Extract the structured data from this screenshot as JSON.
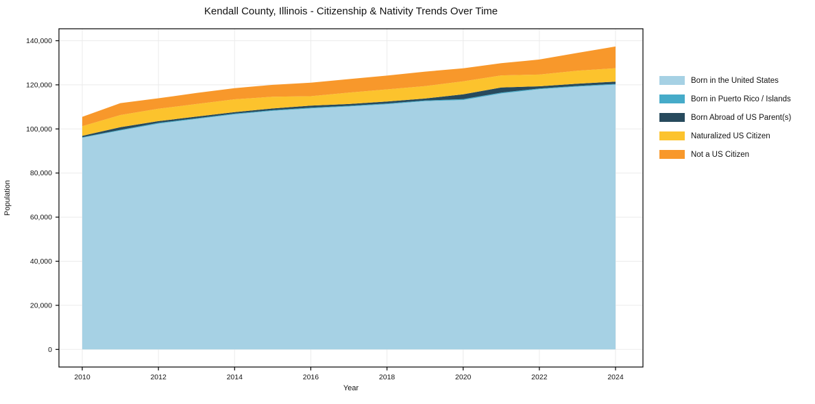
{
  "title": "Kendall County, Illinois - Citizenship & Nativity Trends Over Time",
  "chart_data": {
    "type": "area",
    "stacked": true,
    "title": "Kendall County, Illinois - Citizenship & Nativity Trends Over Time",
    "xlabel": "Year",
    "ylabel": "Population",
    "grid": true,
    "legend_position": "right-outside",
    "x": [
      2010,
      2011,
      2012,
      2013,
      2014,
      2015,
      2016,
      2017,
      2018,
      2019,
      2020,
      2021,
      2022,
      2023,
      2024
    ],
    "series": [
      {
        "name": "Born in the United States",
        "color": "#a6d1e4",
        "values": [
          96000,
          99300,
          102400,
          104500,
          106600,
          108200,
          109300,
          110200,
          111200,
          112600,
          113100,
          116100,
          118000,
          119200,
          120100
        ]
      },
      {
        "name": "Born in Puerto Rico / Islands",
        "color": "#46abc9",
        "values": [
          250,
          300,
          350,
          300,
          350,
          300,
          350,
          300,
          350,
          300,
          400,
          400,
          350,
          300,
          350
        ]
      },
      {
        "name": "Born Abroad of US Parent(s)",
        "color": "#274a5d",
        "values": [
          600,
          1200,
          800,
          800,
          700,
          800,
          900,
          800,
          900,
          900,
          2200,
          2300,
          1000,
          1000,
          1000
        ]
      },
      {
        "name": "Naturalized US Citizen",
        "color": "#fcc32d",
        "values": [
          4400,
          5500,
          5600,
          5700,
          5800,
          5300,
          4300,
          5200,
          5500,
          5600,
          5900,
          5500,
          5300,
          5900,
          6100
        ]
      },
      {
        "name": "Not a US Citizen",
        "color": "#f8982b",
        "values": [
          4250,
          5400,
          4750,
          5000,
          5050,
          5400,
          6150,
          6100,
          6250,
          6600,
          5900,
          5500,
          6850,
          8100,
          9850
        ]
      }
    ],
    "totals": [
      105500,
      111700,
      113900,
      116300,
      118500,
      120000,
      121000,
      122600,
      124200,
      126000,
      127500,
      129800,
      131500,
      134500,
      137400
    ],
    "xticks": [
      2010,
      2012,
      2014,
      2016,
      2018,
      2020,
      2022,
      2024
    ],
    "yticks": [
      0,
      20000,
      40000,
      60000,
      80000,
      100000,
      120000,
      140000
    ],
    "ytick_labels": [
      "0",
      "20,000",
      "40,000",
      "60,000",
      "80,000",
      "100,000",
      "120,000",
      "140,000"
    ],
    "ylim": [
      0,
      145500
    ],
    "axis_color": "#000000",
    "grid_color": "#ebebeb",
    "text_color": "#111111"
  }
}
